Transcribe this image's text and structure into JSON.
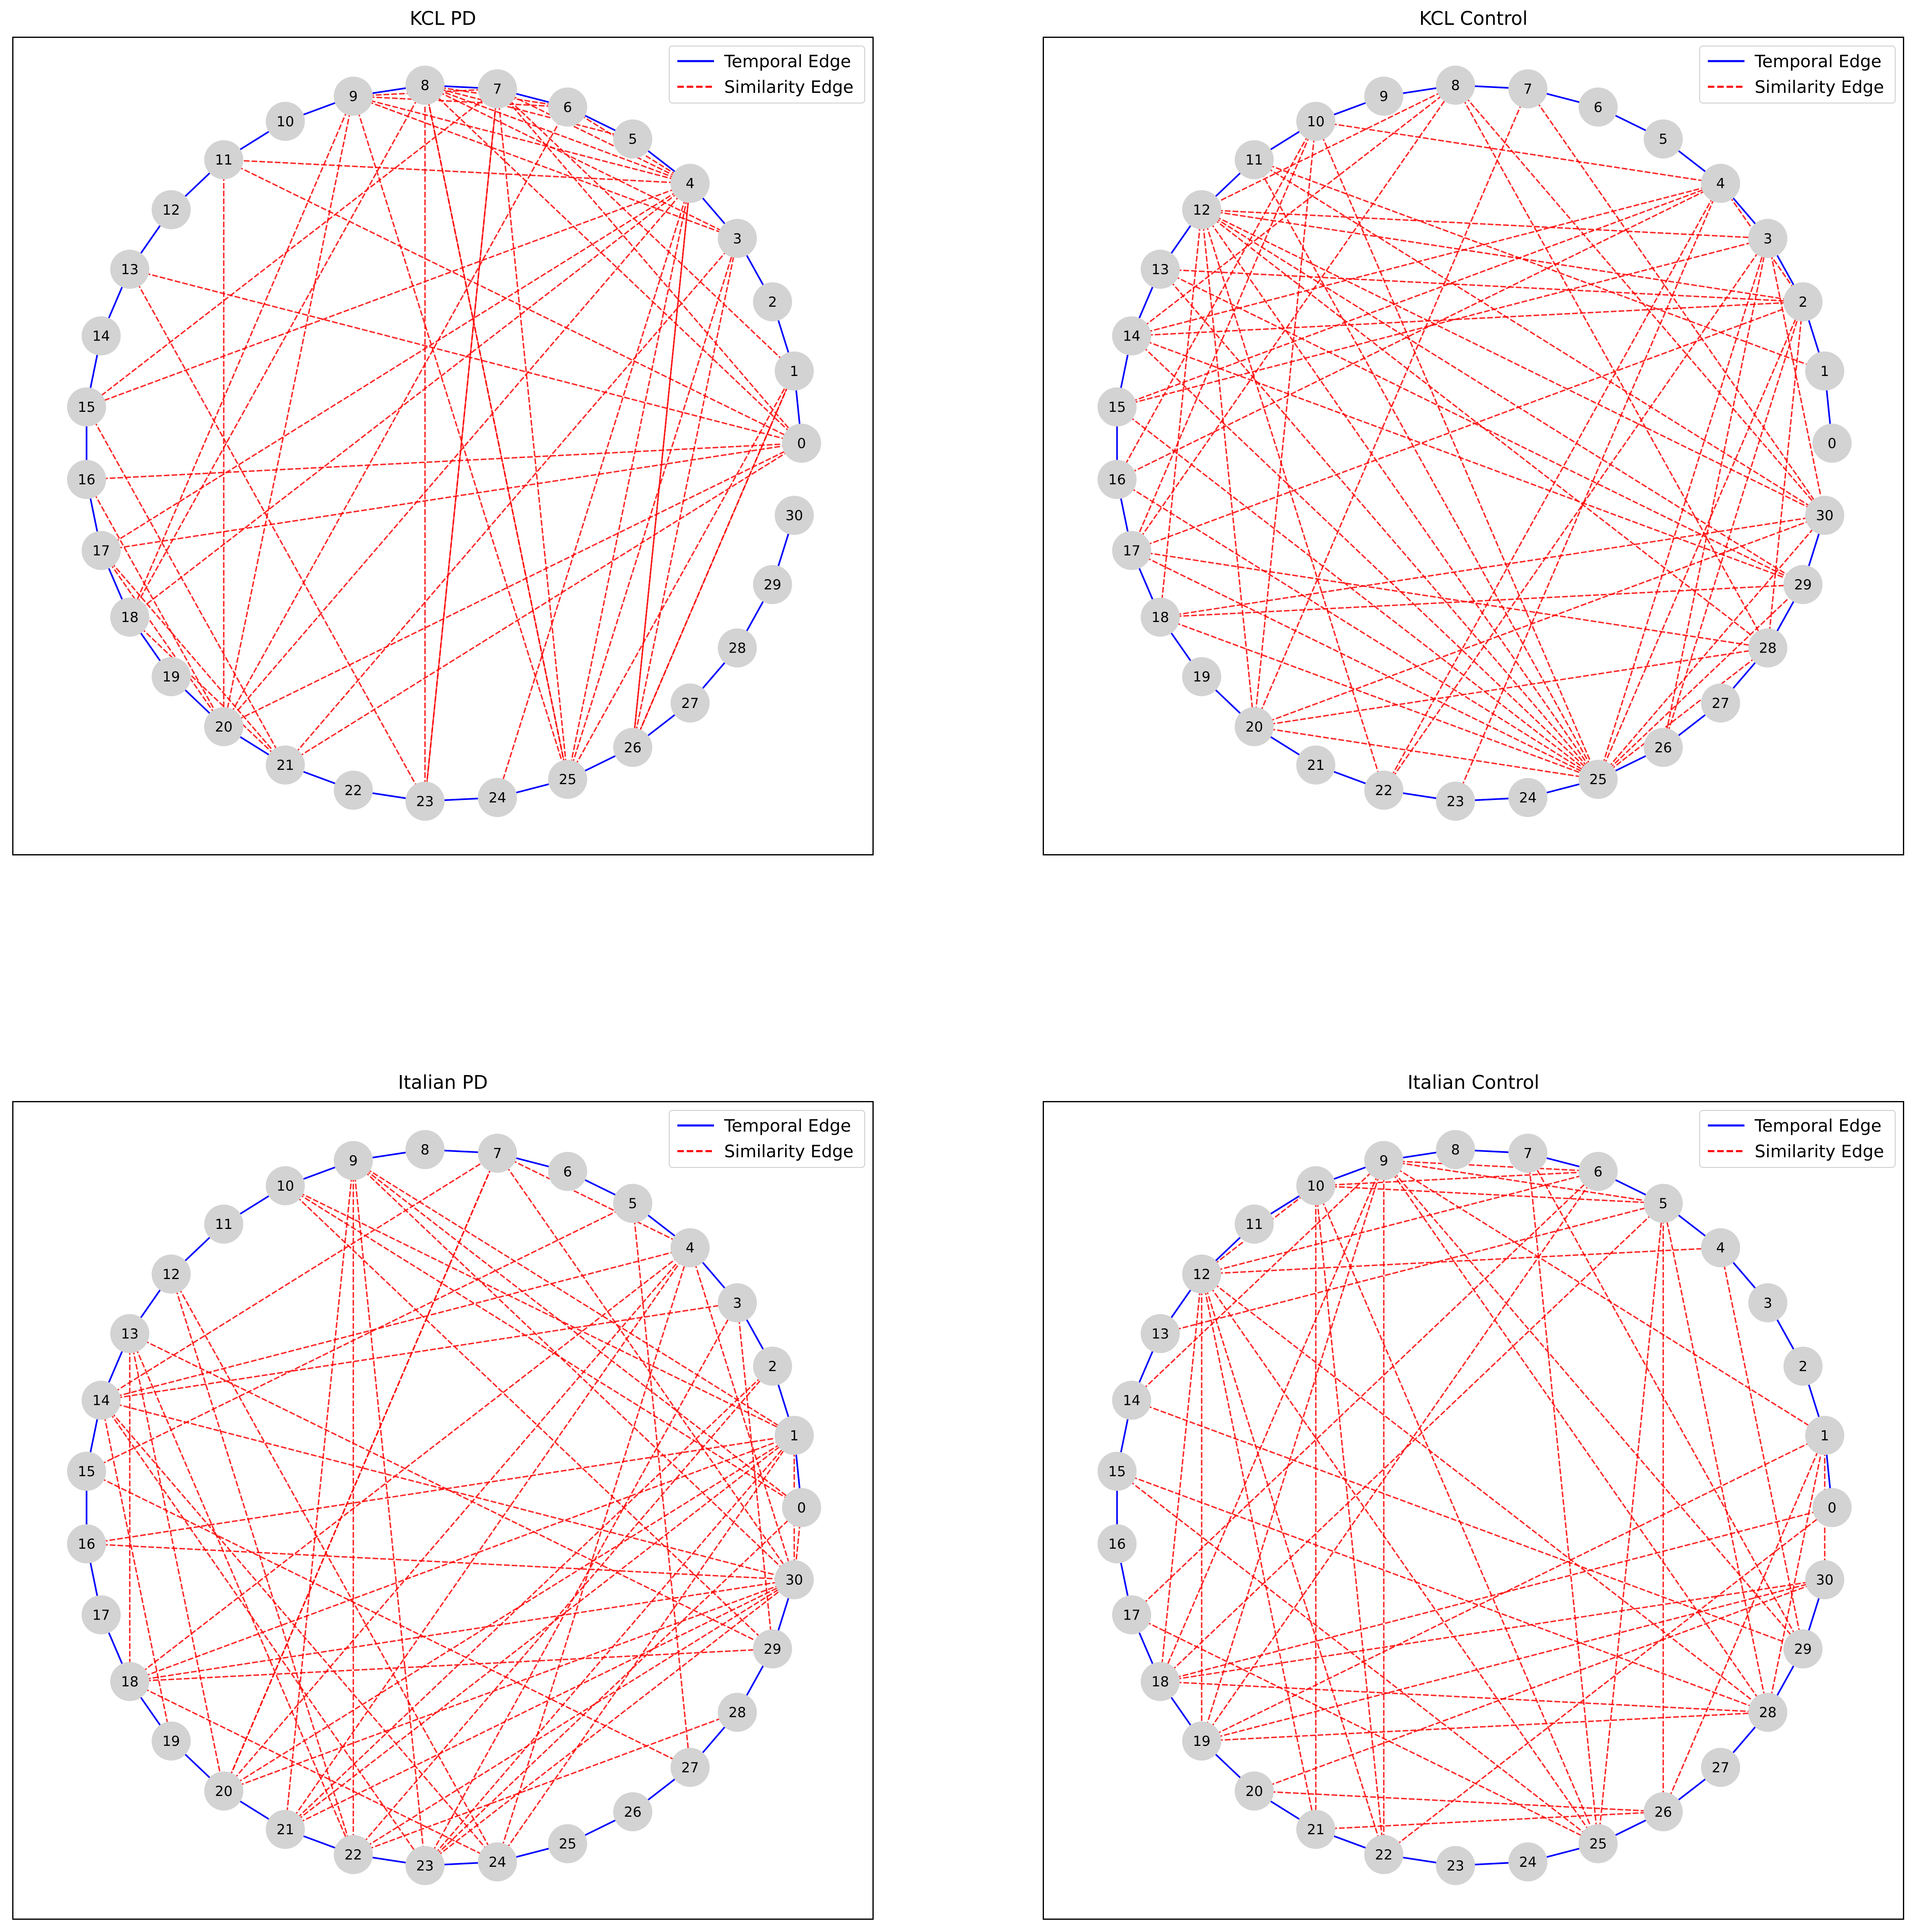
{
  "legend": {
    "temporal_label": "Temporal Edge",
    "similarity_label": "Similarity Edge",
    "temporal_color": "#0000ff",
    "similarity_color": "#ff0000"
  },
  "node_style": {
    "fill": "#d3d3d3"
  },
  "panels": [
    {
      "title": "KCL PD",
      "node_ids": [
        0,
        1,
        2,
        3,
        4,
        5,
        6,
        7,
        8,
        9,
        10,
        11,
        12,
        13,
        14,
        15,
        16,
        17,
        18,
        19,
        20,
        21,
        22,
        23,
        24,
        25,
        26,
        27,
        28,
        29,
        30
      ],
      "temporal_edges": [
        [
          0,
          1
        ],
        [
          1,
          2
        ],
        [
          2,
          3
        ],
        [
          3,
          4
        ],
        [
          4,
          5
        ],
        [
          5,
          6
        ],
        [
          6,
          7
        ],
        [
          7,
          8
        ],
        [
          8,
          9
        ],
        [
          9,
          10
        ],
        [
          10,
          11
        ],
        [
          11,
          12
        ],
        [
          12,
          13
        ],
        [
          13,
          14
        ],
        [
          14,
          15
        ],
        [
          15,
          16
        ],
        [
          16,
          17
        ],
        [
          17,
          18
        ],
        [
          18,
          19
        ],
        [
          19,
          20
        ],
        [
          20,
          21
        ],
        [
          21,
          22
        ],
        [
          22,
          23
        ],
        [
          23,
          24
        ],
        [
          24,
          25
        ],
        [
          25,
          26
        ],
        [
          26,
          27
        ],
        [
          27,
          28
        ],
        [
          28,
          29
        ],
        [
          29,
          30
        ]
      ],
      "similarity_edges": [
        [
          4,
          8
        ],
        [
          4,
          9
        ],
        [
          4,
          7
        ],
        [
          4,
          6
        ],
        [
          4,
          11
        ],
        [
          4,
          15
        ],
        [
          4,
          17
        ],
        [
          4,
          20
        ],
        [
          4,
          24
        ],
        [
          4,
          25
        ],
        [
          4,
          26
        ],
        [
          4,
          18
        ],
        [
          8,
          6
        ],
        [
          8,
          5
        ],
        [
          8,
          25
        ],
        [
          8,
          18
        ],
        [
          8,
          3
        ],
        [
          7,
          9
        ],
        [
          7,
          25
        ],
        [
          7,
          23
        ],
        [
          7,
          15
        ],
        [
          7,
          0
        ],
        [
          9,
          20
        ],
        [
          9,
          25
        ],
        [
          9,
          18
        ],
        [
          9,
          3
        ],
        [
          9,
          6
        ],
        [
          11,
          20
        ],
        [
          11,
          0
        ],
        [
          11,
          10
        ],
        [
          12,
          11
        ],
        [
          13,
          23
        ],
        [
          13,
          0
        ],
        [
          15,
          21
        ],
        [
          16,
          0
        ],
        [
          16,
          20
        ],
        [
          17,
          21
        ],
        [
          17,
          0
        ],
        [
          17,
          20
        ],
        [
          18,
          21
        ],
        [
          20,
          0
        ],
        [
          20,
          6
        ],
        [
          21,
          0
        ],
        [
          21,
          3
        ],
        [
          23,
          8
        ],
        [
          23,
          7
        ],
        [
          25,
          8
        ],
        [
          25,
          3
        ],
        [
          25,
          1
        ],
        [
          26,
          3
        ],
        [
          26,
          1
        ],
        [
          26,
          4
        ],
        [
          1,
          0
        ],
        [
          1,
          7
        ],
        [
          1,
          26
        ],
        [
          0,
          8
        ]
      ]
    },
    {
      "title": "KCL Control",
      "node_ids": [
        0,
        1,
        2,
        3,
        4,
        5,
        6,
        7,
        8,
        9,
        10,
        11,
        12,
        13,
        14,
        15,
        16,
        17,
        18,
        19,
        20,
        21,
        22,
        23,
        24,
        25,
        26,
        27,
        28,
        29,
        30
      ],
      "temporal_edges": [
        [
          0,
          1
        ],
        [
          1,
          2
        ],
        [
          2,
          3
        ],
        [
          3,
          4
        ],
        [
          4,
          5
        ],
        [
          5,
          6
        ],
        [
          6,
          7
        ],
        [
          7,
          8
        ],
        [
          8,
          9
        ],
        [
          9,
          10
        ],
        [
          10,
          11
        ],
        [
          11,
          12
        ],
        [
          12,
          13
        ],
        [
          13,
          14
        ],
        [
          14,
          15
        ],
        [
          15,
          16
        ],
        [
          16,
          17
        ],
        [
          17,
          18
        ],
        [
          18,
          19
        ],
        [
          19,
          20
        ],
        [
          20,
          21
        ],
        [
          21,
          22
        ],
        [
          22,
          23
        ],
        [
          23,
          24
        ],
        [
          24,
          25
        ],
        [
          25,
          26
        ],
        [
          26,
          27
        ],
        [
          27,
          28
        ],
        [
          28,
          29
        ],
        [
          29,
          30
        ]
      ],
      "similarity_edges": [
        [
          10,
          4
        ],
        [
          10,
          25
        ],
        [
          10,
          20
        ],
        [
          10,
          17
        ],
        [
          10,
          16
        ],
        [
          12,
          3
        ],
        [
          12,
          25
        ],
        [
          12,
          28
        ],
        [
          12,
          30
        ],
        [
          12,
          29
        ],
        [
          12,
          2
        ],
        [
          12,
          18
        ],
        [
          12,
          20
        ],
        [
          12,
          22
        ],
        [
          13,
          25
        ],
        [
          13,
          2
        ],
        [
          13,
          29
        ],
        [
          14,
          2
        ],
        [
          14,
          4
        ],
        [
          14,
          8
        ],
        [
          14,
          25
        ],
        [
          14,
          29
        ],
        [
          15,
          25
        ],
        [
          15,
          4
        ],
        [
          15,
          3
        ],
        [
          16,
          4
        ],
        [
          16,
          25
        ],
        [
          17,
          8
        ],
        [
          17,
          28
        ],
        [
          17,
          25
        ],
        [
          17,
          2
        ],
        [
          18,
          25
        ],
        [
          18,
          29
        ],
        [
          18,
          30
        ],
        [
          20,
          30
        ],
        [
          20,
          28
        ],
        [
          20,
          25
        ],
        [
          20,
          7
        ],
        [
          22,
          4
        ],
        [
          22,
          3
        ],
        [
          23,
          4
        ],
        [
          25,
          3
        ],
        [
          25,
          2
        ],
        [
          25,
          30
        ],
        [
          25,
          29
        ],
        [
          25,
          11
        ],
        [
          25,
          28
        ],
        [
          26,
          3
        ],
        [
          26,
          2
        ],
        [
          8,
          30
        ],
        [
          8,
          28
        ],
        [
          8,
          12
        ],
        [
          7,
          30
        ],
        [
          11,
          30
        ],
        [
          11,
          1
        ],
        [
          4,
          2
        ],
        [
          3,
          30
        ],
        [
          28,
          2
        ]
      ]
    },
    {
      "title": "Italian PD",
      "node_ids": [
        0,
        1,
        2,
        3,
        4,
        5,
        6,
        7,
        8,
        9,
        10,
        11,
        12,
        13,
        14,
        15,
        16,
        17,
        18,
        19,
        20,
        21,
        22,
        23,
        24,
        25,
        26,
        27,
        28,
        29,
        30
      ],
      "temporal_edges": [
        [
          0,
          1
        ],
        [
          1,
          2
        ],
        [
          2,
          3
        ],
        [
          3,
          4
        ],
        [
          4,
          5
        ],
        [
          5,
          6
        ],
        [
          6,
          7
        ],
        [
          7,
          8
        ],
        [
          8,
          9
        ],
        [
          9,
          10
        ],
        [
          10,
          11
        ],
        [
          11,
          12
        ],
        [
          12,
          13
        ],
        [
          13,
          14
        ],
        [
          14,
          15
        ],
        [
          15,
          16
        ],
        [
          16,
          17
        ],
        [
          17,
          18
        ],
        [
          18,
          19
        ],
        [
          19,
          20
        ],
        [
          20,
          21
        ],
        [
          21,
          22
        ],
        [
          22,
          23
        ],
        [
          23,
          24
        ],
        [
          24,
          25
        ],
        [
          25,
          26
        ],
        [
          26,
          27
        ],
        [
          27,
          28
        ],
        [
          28,
          29
        ],
        [
          29,
          30
        ]
      ],
      "similarity_edges": [
        [
          9,
          23
        ],
        [
          9,
          22
        ],
        [
          9,
          21
        ],
        [
          9,
          0
        ],
        [
          9,
          1
        ],
        [
          9,
          30
        ],
        [
          10,
          1
        ],
        [
          10,
          0
        ],
        [
          10,
          29
        ],
        [
          12,
          24
        ],
        [
          12,
          22
        ],
        [
          13,
          29
        ],
        [
          13,
          22
        ],
        [
          13,
          20
        ],
        [
          13,
          18
        ],
        [
          14,
          7
        ],
        [
          14,
          3
        ],
        [
          14,
          4
        ],
        [
          14,
          23
        ],
        [
          14,
          24
        ],
        [
          14,
          19
        ],
        [
          14,
          30
        ],
        [
          15,
          5
        ],
        [
          15,
          27
        ],
        [
          16,
          1
        ],
        [
          16,
          30
        ],
        [
          18,
          4
        ],
        [
          18,
          1
        ],
        [
          18,
          30
        ],
        [
          18,
          29
        ],
        [
          18,
          24
        ],
        [
          20,
          4
        ],
        [
          20,
          1
        ],
        [
          20,
          30
        ],
        [
          20,
          7
        ],
        [
          21,
          4
        ],
        [
          21,
          1
        ],
        [
          21,
          30
        ],
        [
          22,
          30
        ],
        [
          22,
          2
        ],
        [
          22,
          28
        ],
        [
          23,
          1
        ],
        [
          23,
          30
        ],
        [
          23,
          3
        ],
        [
          23,
          0
        ],
        [
          24,
          1
        ],
        [
          24,
          4
        ],
        [
          7,
          4
        ],
        [
          7,
          20
        ],
        [
          7,
          30
        ],
        [
          5,
          27
        ],
        [
          4,
          30
        ],
        [
          3,
          29
        ],
        [
          2,
          21
        ],
        [
          25,
          26
        ],
        [
          0,
          30
        ],
        [
          1,
          30
        ]
      ]
    },
    {
      "title": "Italian Control",
      "node_ids": [
        0,
        1,
        2,
        3,
        4,
        5,
        6,
        7,
        8,
        9,
        10,
        11,
        12,
        13,
        14,
        15,
        16,
        17,
        18,
        19,
        20,
        21,
        22,
        23,
        24,
        25,
        26,
        27,
        28,
        29,
        30
      ],
      "temporal_edges": [
        [
          0,
          1
        ],
        [
          1,
          2
        ],
        [
          2,
          3
        ],
        [
          3,
          4
        ],
        [
          4,
          5
        ],
        [
          5,
          6
        ],
        [
          6,
          7
        ],
        [
          7,
          8
        ],
        [
          8,
          9
        ],
        [
          9,
          10
        ],
        [
          10,
          11
        ],
        [
          11,
          12
        ],
        [
          12,
          13
        ],
        [
          13,
          14
        ],
        [
          14,
          15
        ],
        [
          15,
          16
        ],
        [
          16,
          17
        ],
        [
          17,
          18
        ],
        [
          18,
          19
        ],
        [
          19,
          20
        ],
        [
          20,
          21
        ],
        [
          21,
          22
        ],
        [
          22,
          23
        ],
        [
          23,
          24
        ],
        [
          24,
          25
        ],
        [
          25,
          26
        ],
        [
          26,
          27
        ],
        [
          27,
          28
        ],
        [
          28,
          29
        ],
        [
          29,
          30
        ]
      ],
      "similarity_edges": [
        [
          9,
          5
        ],
        [
          9,
          6
        ],
        [
          9,
          22
        ],
        [
          9,
          19
        ],
        [
          9,
          18
        ],
        [
          9,
          29
        ],
        [
          9,
          28
        ],
        [
          9,
          1
        ],
        [
          10,
          5
        ],
        [
          10,
          6
        ],
        [
          10,
          25
        ],
        [
          10,
          22
        ],
        [
          10,
          21
        ],
        [
          12,
          4
        ],
        [
          12,
          6
        ],
        [
          12,
          19
        ],
        [
          12,
          22
        ],
        [
          12,
          25
        ],
        [
          12,
          21
        ],
        [
          12,
          18
        ],
        [
          12,
          28
        ],
        [
          12,
          10
        ],
        [
          13,
          5
        ],
        [
          14,
          29
        ],
        [
          14,
          9
        ],
        [
          15,
          28
        ],
        [
          15,
          25
        ],
        [
          17,
          6
        ],
        [
          17,
          25
        ],
        [
          18,
          30
        ],
        [
          18,
          28
        ],
        [
          18,
          0
        ],
        [
          18,
          5
        ],
        [
          19,
          30
        ],
        [
          19,
          28
        ],
        [
          19,
          1
        ],
        [
          19,
          6
        ],
        [
          20,
          26
        ],
        [
          20,
          30
        ],
        [
          21,
          26
        ],
        [
          22,
          0
        ],
        [
          22,
          23
        ],
        [
          24,
          23
        ],
        [
          25,
          7
        ],
        [
          25,
          5
        ],
        [
          26,
          1
        ],
        [
          26,
          5
        ],
        [
          28,
          5
        ],
        [
          28,
          1
        ],
        [
          29,
          7
        ],
        [
          29,
          4
        ],
        [
          30,
          1
        ],
        [
          11,
          10
        ],
        [
          11,
          12
        ]
      ]
    }
  ]
}
